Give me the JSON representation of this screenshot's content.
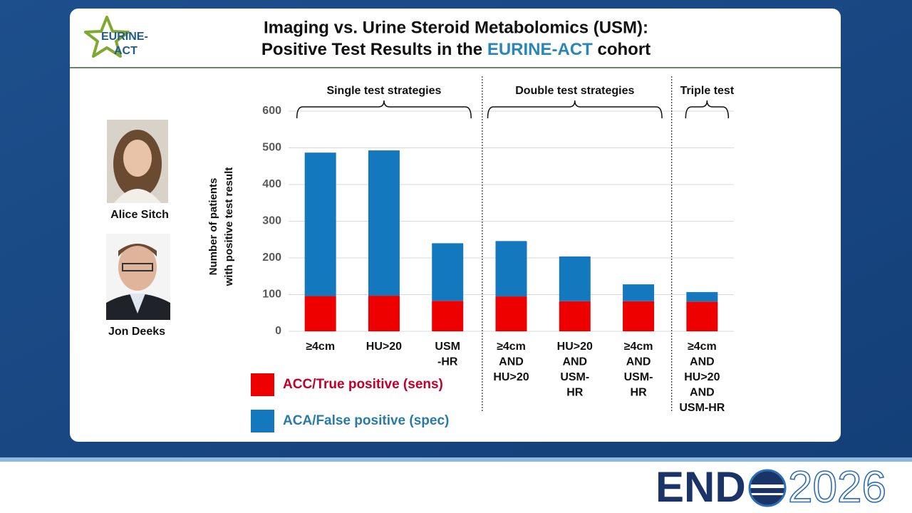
{
  "logo": {
    "lines": [
      "EURINE-",
      "ACT"
    ]
  },
  "title": {
    "line1": "Imaging vs. Urine Steroid Metabolomics (USM):",
    "line2": [
      "Positive Test Results in the",
      "EURINE-ACT",
      "cohort"
    ]
  },
  "people": [
    {
      "name": "Alice Sitch"
    },
    {
      "name": "Jon Deeks"
    }
  ],
  "footer": {
    "brand": "END",
    "year": "2026"
  },
  "chart_data": {
    "type": "bar",
    "stacked": true,
    "y_label": [
      "Number of patients",
      "with positive test result"
    ],
    "groups": [
      {
        "label": "Single test strategies",
        "categories": [
          [
            "≥4cm"
          ],
          [
            "HU>20"
          ],
          [
            "USM",
            "-HR"
          ]
        ]
      },
      {
        "label": "Double test strategies",
        "categories": [
          [
            "≥4cm",
            "AND",
            "HU>20"
          ],
          [
            "HU>20",
            "AND",
            "USM-",
            "HR"
          ],
          [
            "≥4cm",
            "AND",
            "USM-",
            "HR"
          ]
        ]
      },
      {
        "label": "Triple test",
        "categories": [
          [
            "≥4cm",
            "AND",
            "HU>20",
            "AND",
            "USM-HR"
          ]
        ]
      }
    ],
    "series": [
      {
        "name": "ACC/True positive (sens)",
        "color": "#ee0000",
        "text_color": "#c0002a",
        "values": [
          96,
          97,
          83,
          95,
          82,
          82,
          81
        ]
      },
      {
        "name": "ACA/False positive (spec)",
        "color": "#1478be",
        "text_color": "#2a7aa8",
        "values": [
          391,
          396,
          157,
          151,
          122,
          46,
          26
        ]
      }
    ],
    "ylim": [
      0,
      600
    ],
    "yticks": [
      0,
      100,
      200,
      300,
      400,
      500,
      600
    ],
    "grid": true
  }
}
